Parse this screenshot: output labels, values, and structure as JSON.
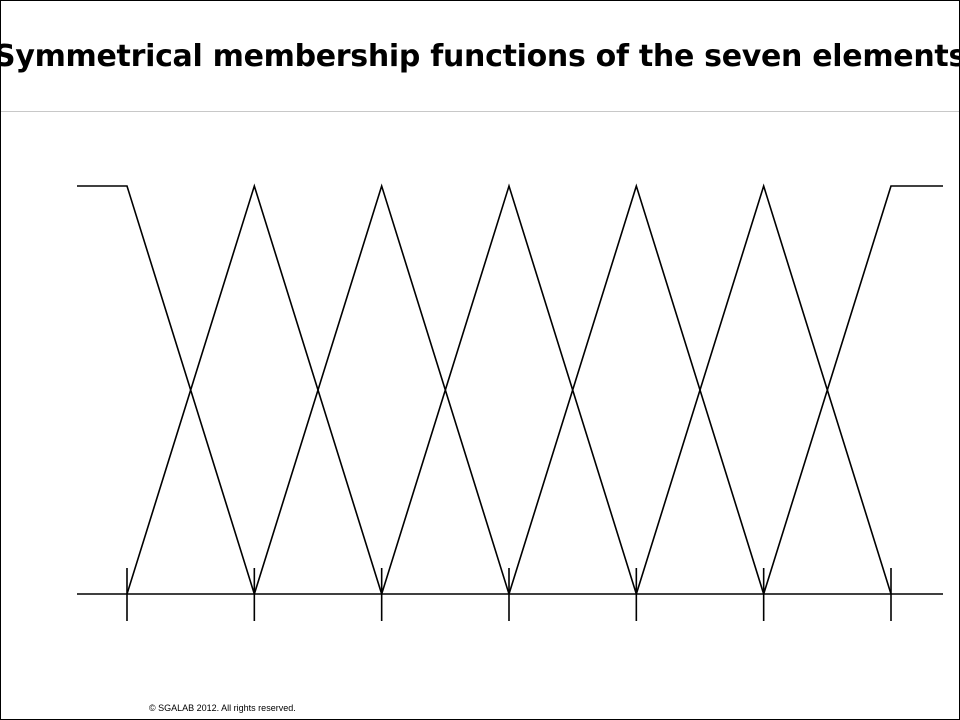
{
  "slide": {
    "title": "Symmetrical membership functions of the seven elements",
    "copyright": "© SGALAB 2012. All rights reserved."
  },
  "diagram": {
    "membership_function_count": 7,
    "shape": "triangular",
    "end_shapes": "shoulder",
    "line_color": "#000000"
  }
}
